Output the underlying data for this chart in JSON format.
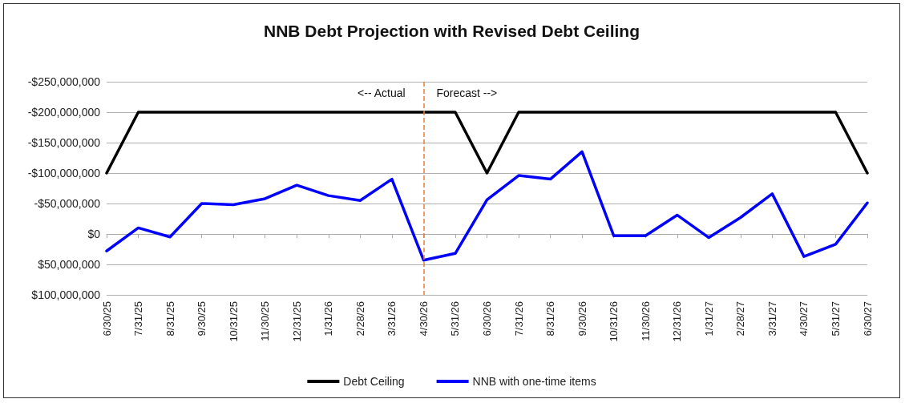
{
  "chart_data": {
    "type": "line",
    "title": "NNB Debt Projection with Revised Debt Ceiling",
    "categories": [
      "6/30/25",
      "7/31/25",
      "8/31/25",
      "9/30/25",
      "10/31/25",
      "11/30/25",
      "12/31/25",
      "1/31/26",
      "2/28/26",
      "3/31/26",
      "4/30/26",
      "5/31/26",
      "6/30/26",
      "7/31/26",
      "8/31/26",
      "9/30/26",
      "10/31/26",
      "11/30/26",
      "12/31/26",
      "1/31/27",
      "2/28/27",
      "3/31/27",
      "4/30/27",
      "5/31/27",
      "6/30/27"
    ],
    "series": [
      {
        "name": "Debt Ceiling",
        "color": "#000000",
        "values": [
          -100000000,
          -200000000,
          -200000000,
          -200000000,
          -200000000,
          -200000000,
          -200000000,
          -200000000,
          -200000000,
          -200000000,
          -200000000,
          -200000000,
          -100000000,
          -200000000,
          -200000000,
          -200000000,
          -200000000,
          -200000000,
          -200000000,
          -200000000,
          -200000000,
          -200000000,
          -200000000,
          -200000000,
          -100000000
        ]
      },
      {
        "name": "NNB with one-time items",
        "color": "#0000ff",
        "values": [
          28000000,
          -10000000,
          5000000,
          -50000000,
          -48000000,
          -58000000,
          -80000000,
          -63000000,
          -55000000,
          -90000000,
          43000000,
          32000000,
          -56000000,
          -96000000,
          -90000000,
          -135000000,
          3000000,
          3000000,
          -31000000,
          6000000,
          -27000000,
          -66000000,
          37000000,
          17000000,
          -51000000
        ]
      }
    ],
    "ylim": [
      100000000,
      -250000000
    ],
    "yticks": [
      {
        "value": -250000000,
        "label": "-$250,000,000"
      },
      {
        "value": -200000000,
        "label": "-$200,000,000"
      },
      {
        "value": -150000000,
        "label": "-$150,000,000"
      },
      {
        "value": -100000000,
        "label": "-$100,000,000"
      },
      {
        "value": -50000000,
        "label": "-$50,000,000"
      },
      {
        "value": 0,
        "label": "$0"
      },
      {
        "value": 50000000,
        "label": "$50,000,000"
      },
      {
        "value": 100000000,
        "label": "$100,000,000"
      }
    ],
    "ref_lines": [
      {
        "axis": "x",
        "value": "4/30/26",
        "color": "#ed7d31",
        "line_style": "dashed"
      }
    ],
    "annotations": [
      "<-- Actual",
      "Forecast -->"
    ],
    "grid": "y",
    "legend": "bottom",
    "marker": "none",
    "line_style": "solid"
  }
}
